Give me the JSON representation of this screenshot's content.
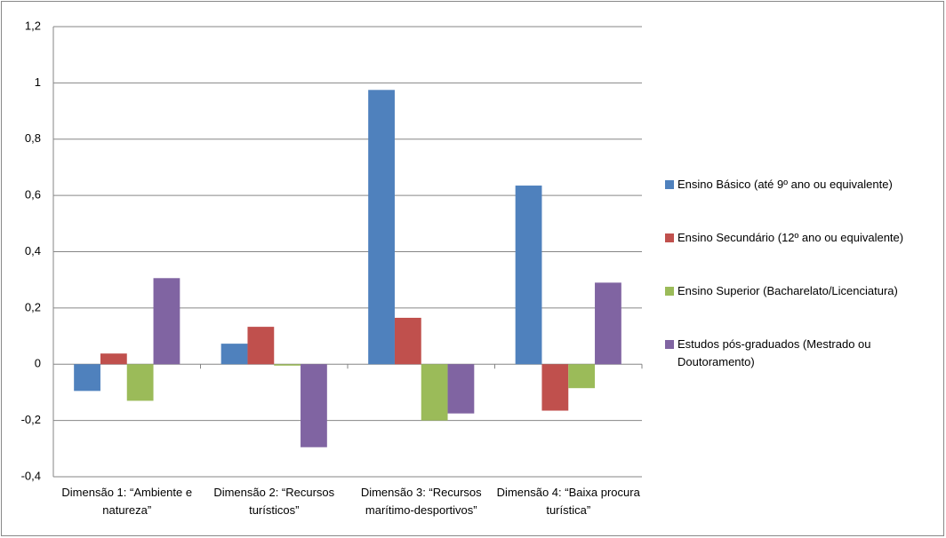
{
  "chart_data": {
    "type": "bar",
    "categories": [
      "Dimensão 1: “Ambiente e natureza”",
      "Dimensão 2: “Recursos turísticos”",
      "Dimensão 3: “Recursos marítimo-desportivos”",
      "Dimensão 4: “Baixa procura turística”"
    ],
    "series": [
      {
        "name": "Ensino Básico (até 9º ano ou equivalente)",
        "color": "#4f81bd",
        "values": [
          -0.095,
          0.073,
          0.975,
          0.635
        ]
      },
      {
        "name": "Ensino Secundário (12º ano ou equivalente)",
        "color": "#c0504d",
        "values": [
          0.038,
          0.133,
          0.165,
          -0.165
        ]
      },
      {
        "name": "Ensino Superior (Bacharelato/Licenciatura)",
        "color": "#9bbb59",
        "values": [
          -0.13,
          -0.005,
          -0.2,
          -0.085
        ]
      },
      {
        "name": "Estudos pós-graduados (Mestrado ou Doutoramento)",
        "color": "#8064a2",
        "values": [
          0.306,
          -0.295,
          -0.175,
          0.29
        ]
      }
    ],
    "ylim": [
      -0.4,
      1.2
    ],
    "yticks": [
      {
        "value": -0.4,
        "label": "-0,4"
      },
      {
        "value": -0.2,
        "label": "-0,2"
      },
      0,
      {
        "value": 0.2,
        "label": "0,2"
      },
      {
        "value": 0.4,
        "label": "0,4"
      },
      {
        "value": 0.6,
        "label": "0,6"
      },
      {
        "value": 0.8,
        "label": "0,8"
      },
      1,
      {
        "value": 1.2,
        "label": "1,2"
      }
    ],
    "grid": true,
    "legend": "right"
  }
}
